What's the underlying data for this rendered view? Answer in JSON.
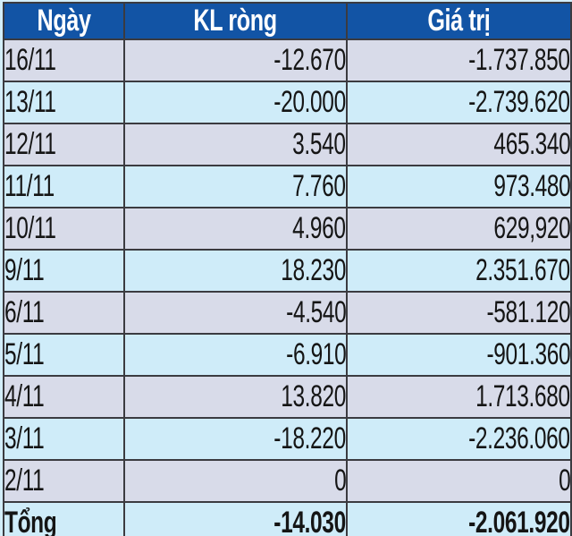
{
  "colors": {
    "header_bg": "#1254a5",
    "header_text": "#ffffff",
    "row_alt_lavender": "#d8dbe9",
    "row_alt_cyan": "#cfecf9",
    "border": "#3b3b40",
    "text": "#151515",
    "frame_bg": "#d3eefa"
  },
  "table": {
    "columns": [
      "Ngày",
      "KL ròng",
      "Giá trị"
    ],
    "rows": [
      {
        "date": "16/11",
        "net_volume": "-12.670",
        "value": "-1.737.850"
      },
      {
        "date": "13/11",
        "net_volume": "-20.000",
        "value": "-2.739.620"
      },
      {
        "date": "12/11",
        "net_volume": "3.540",
        "value": "465.340"
      },
      {
        "date": "11/11",
        "net_volume": "7.760",
        "value": "973.480"
      },
      {
        "date": "10/11",
        "net_volume": "4.960",
        "value": "629,920"
      },
      {
        "date": "9/11",
        "net_volume": "18.230",
        "value": "2.351.670"
      },
      {
        "date": "6/11",
        "net_volume": "-4.540",
        "value": "-581.120"
      },
      {
        "date": "5/11",
        "net_volume": "-6.910",
        "value": "-901.360"
      },
      {
        "date": "4/11",
        "net_volume": "13.820",
        "value": "1.713.680"
      },
      {
        "date": "3/11",
        "net_volume": "-18.220",
        "value": "-2.236.060"
      },
      {
        "date": "2/11",
        "net_volume": "0",
        "value": "0"
      }
    ],
    "total": {
      "label": "Tổng",
      "net_volume": "-14.030",
      "value": "-2.061.920"
    }
  },
  "chart_data": {
    "type": "table",
    "title": "",
    "columns": [
      "Ngày",
      "KL ròng",
      "Giá trị"
    ],
    "rows": [
      [
        "16/11",
        -12670,
        -1737850
      ],
      [
        "13/11",
        -20000,
        -2739620
      ],
      [
        "12/11",
        3540,
        465340
      ],
      [
        "11/11",
        7760,
        973480
      ],
      [
        "10/11",
        4960,
        629920
      ],
      [
        "9/11",
        18230,
        2351670
      ],
      [
        "6/11",
        -4540,
        -581120
      ],
      [
        "5/11",
        -6910,
        -901360
      ],
      [
        "4/11",
        13820,
        1713680
      ],
      [
        "3/11",
        -18220,
        -2236060
      ],
      [
        "2/11",
        0,
        0
      ]
    ],
    "total_row": [
      "Tổng",
      -14030,
      -2061920
    ]
  }
}
